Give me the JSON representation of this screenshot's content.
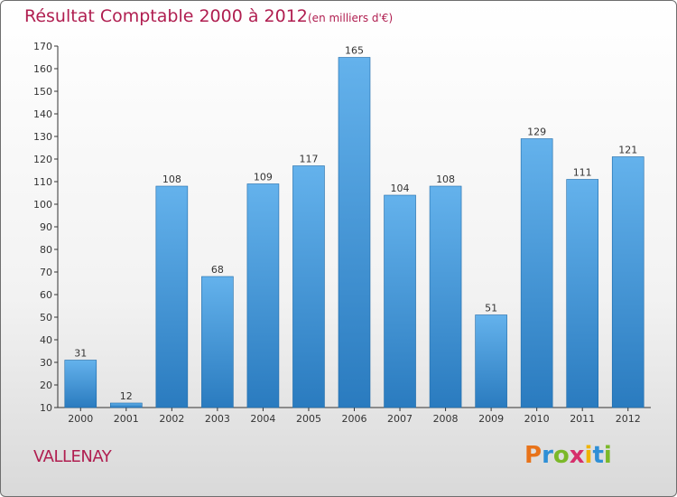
{
  "title": "Résultat Comptable 2000 à 2012",
  "unit_label": "(en milliers d'€)",
  "commune": "VALLENAY",
  "logo": {
    "letters": [
      "P",
      "r",
      "o",
      "x",
      "i",
      "t",
      "i"
    ],
    "colors": [
      "#e8731a",
      "#2f8fd6",
      "#7bb829",
      "#d62f6b",
      "#f0b400",
      "#2f8fd6",
      "#7bb829"
    ]
  },
  "colors": {
    "title": "#b01e50",
    "bar_top": "#64b2ec",
    "bar_bottom": "#2a7bbf",
    "bar_edge": "#1e6aa8"
  },
  "chart_data": {
    "type": "bar",
    "title": "Résultat Comptable 2000 à 2012",
    "categories": [
      "2000",
      "2001",
      "2002",
      "2003",
      "2004",
      "2005",
      "2006",
      "2007",
      "2008",
      "2009",
      "2010",
      "2011",
      "2012"
    ],
    "values": [
      31,
      12,
      108,
      68,
      109,
      117,
      165,
      104,
      108,
      51,
      129,
      111,
      121
    ],
    "ylim": [
      10,
      170
    ],
    "yticks": [
      10,
      20,
      30,
      40,
      50,
      60,
      70,
      80,
      90,
      100,
      110,
      120,
      130,
      140,
      150,
      160,
      170
    ],
    "xlabel": "",
    "ylabel": "",
    "grid": false,
    "legend": false
  }
}
